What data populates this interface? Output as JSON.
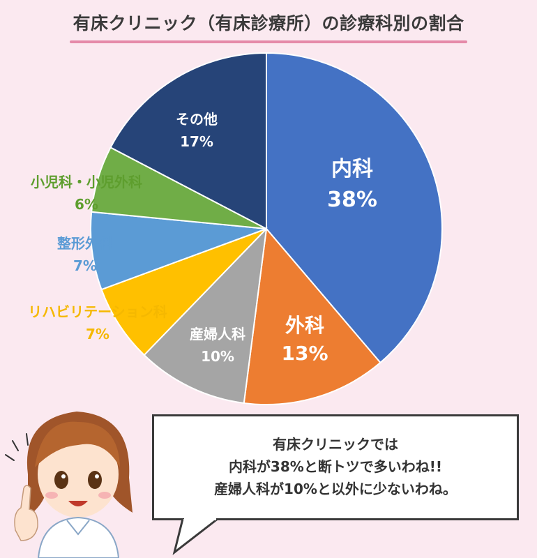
{
  "title": "有床クリニック（有床診療所）の診療科別の割合",
  "chart_data": {
    "type": "pie",
    "title": "有床クリニック（有床診療所）の診療科別の割合",
    "unit": "%",
    "slices": [
      {
        "label": "内科",
        "value": 38,
        "display": "38%",
        "color": "#4472c4",
        "label_color": "#ffffff"
      },
      {
        "label": "外科",
        "value": 13,
        "display": "13%",
        "color": "#ed7d31",
        "label_color": "#ffffff"
      },
      {
        "label": "産婦人科",
        "value": 10,
        "display": "10%",
        "color": "#a5a5a5",
        "label_color": "#ffffff"
      },
      {
        "label": "リハビリテーション科",
        "value": 7,
        "display": "7%",
        "color": "#ffc000",
        "label_color": "#f5b800"
      },
      {
        "label": "整形外科",
        "value": 7,
        "display": "7%",
        "color": "#5b9bd5",
        "label_color": "#5b9bd5"
      },
      {
        "label": "小児科・小児外科",
        "value": 6,
        "display": "6%",
        "color": "#70ad47",
        "label_color": "#5e9e2e"
      },
      {
        "label": "その他",
        "value": 17,
        "display": "17%",
        "color": "#264478",
        "label_color": "#ffffff"
      }
    ]
  },
  "speech": {
    "line1": "有床クリニックでは",
    "line2": "内科が38%と断トツで多いわね!!",
    "line3": "産婦人科が10%と以外に少ないわね。"
  }
}
